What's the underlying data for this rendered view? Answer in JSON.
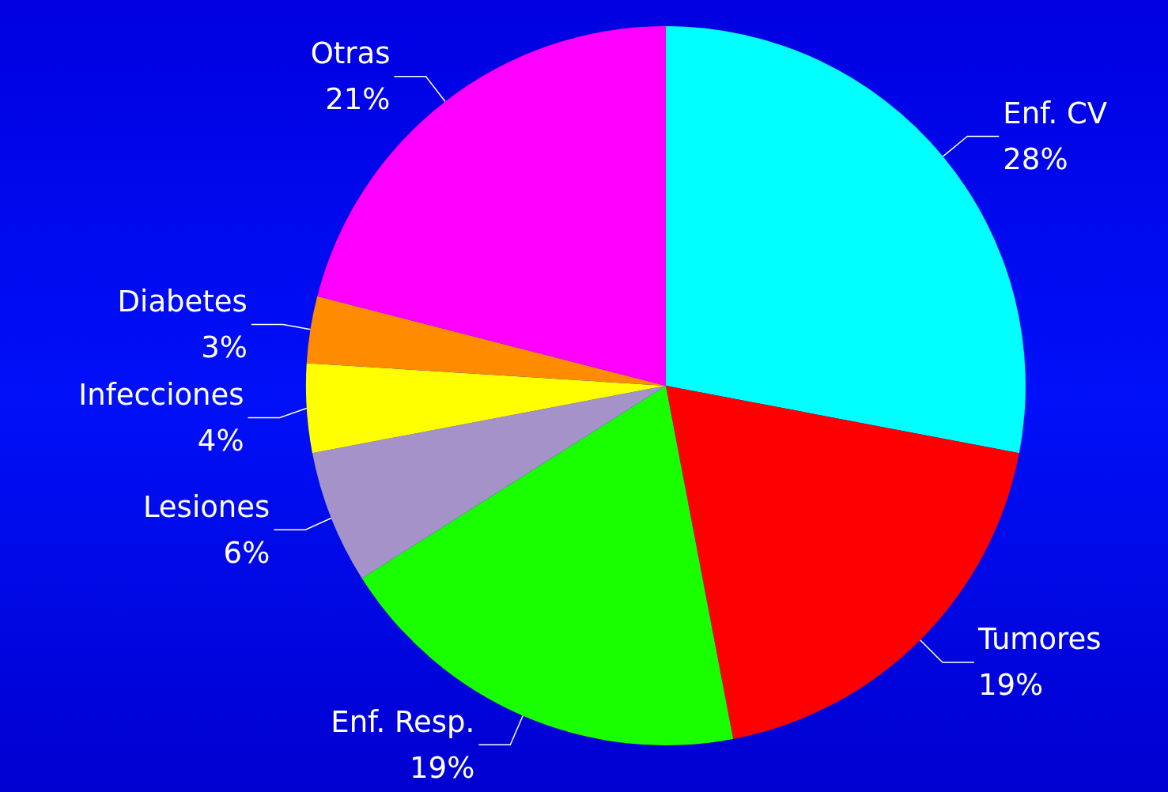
{
  "chart_data": {
    "type": "pie",
    "categories": [
      "Enf. CV",
      "Tumores",
      "Enf. Resp.",
      "Lesiones",
      "Infecciones",
      "Diabetes",
      "Otras"
    ],
    "values": [
      28,
      19,
      19,
      6,
      4,
      3,
      21
    ],
    "value_labels": [
      "28%",
      "19%",
      "19%",
      "6%",
      "4%",
      "3%",
      "21%"
    ],
    "colors": [
      "#00ffff",
      "#ff0000",
      "#1aff00",
      "#a592c8",
      "#ffff00",
      "#ff8c00",
      "#ff00ff"
    ],
    "legend": false
  }
}
